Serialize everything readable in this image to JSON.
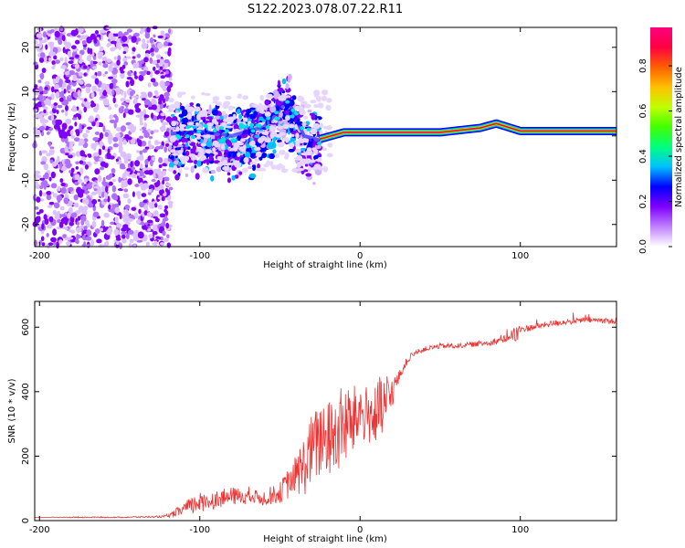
{
  "title": "S122.2023.078.07.22.R11",
  "chart_data": [
    {
      "type": "heatmap",
      "xlabel": "Height of straight line (km)",
      "ylabel": "Frequency (Hz)",
      "xlim": [
        -203,
        160
      ],
      "ylim": [
        -25,
        24.5
      ],
      "xticks": [
        -200,
        -100,
        0,
        100
      ],
      "xtick_labels": [
        "-200",
        "-100",
        "0",
        "100"
      ],
      "yticks": [
        -20,
        -10,
        0,
        10,
        20
      ],
      "ytick_labels": [
        "-20",
        "-10",
        "0",
        "10",
        "20"
      ],
      "colorbar": {
        "label": "Normalized spectral amplitude",
        "range": [
          0,
          0.97
        ],
        "ticks": [
          0.0,
          0.2,
          0.4,
          0.6,
          0.8
        ],
        "tick_labels": [
          "0.0",
          "0.2",
          "0.4",
          "0.6",
          "0.8"
        ],
        "colors": [
          "#ffffff",
          "#c080ff",
          "#8000ff",
          "#0000ff",
          "#00c0ff",
          "#00ff80",
          "#40ff00",
          "#c0ff00",
          "#ffc000",
          "#ff6000",
          "#ff0040",
          "#ff0080"
        ]
      },
      "regions": [
        {
          "x_range": [
            -203,
            -118
          ],
          "y_range": [
            -25,
            24.5
          ],
          "amplitude": 0.15,
          "note_color": "#8000ff"
        },
        {
          "x_range": [
            -118,
            -25
          ],
          "y_range": [
            -15,
            9
          ],
          "amplitude": 0.3
        },
        {
          "x_range": [
            -25,
            160
          ],
          "y_range": [
            -1,
            2
          ],
          "amplitude": 0.9
        }
      ],
      "ridge": [
        [
          -118,
          0.5
        ],
        [
          -100,
          1
        ],
        [
          -80,
          0
        ],
        [
          -60,
          2
        ],
        [
          -45,
          8
        ],
        [
          -35,
          0
        ],
        [
          -25,
          -1
        ],
        [
          -10,
          0.5
        ],
        [
          0,
          0.5
        ],
        [
          50,
          0.5
        ],
        [
          75,
          1.5
        ],
        [
          85,
          2.5
        ],
        [
          100,
          0.8
        ],
        [
          160,
          0.8
        ]
      ]
    },
    {
      "type": "line",
      "xlabel": "Height of straight line (km)",
      "ylabel": "SNR (10 * v/v)",
      "xlim": [
        -203,
        160
      ],
      "ylim": [
        0,
        680
      ],
      "xticks": [
        -200,
        -100,
        0,
        100
      ],
      "xtick_labels": [
        "-200",
        "-100",
        "0",
        "100"
      ],
      "yticks": [
        0,
        200,
        400,
        600
      ],
      "ytick_labels": [
        "0",
        "200",
        "400",
        "600"
      ],
      "line_color": "#ee3333",
      "series": [
        {
          "x": [
            -203,
            -180,
            -150,
            -120,
            -110,
            -100,
            -90,
            -80,
            -70,
            -60,
            -50,
            -40,
            -35,
            -30,
            -25,
            -20,
            -15,
            -10,
            -5,
            0,
            5,
            10,
            15,
            20,
            25,
            30,
            35,
            40,
            50,
            60,
            70,
            80,
            90,
            95,
            97,
            100,
            110,
            120,
            130,
            140,
            150,
            160
          ],
          "y": [
            10,
            10,
            10,
            12,
            30,
            50,
            60,
            70,
            70,
            65,
            80,
            130,
            150,
            200,
            220,
            230,
            240,
            270,
            280,
            320,
            310,
            300,
            320,
            390,
            450,
            500,
            520,
            530,
            540,
            540,
            545,
            550,
            560,
            575,
            560,
            590,
            600,
            610,
            615,
            620,
            620,
            615
          ],
          "noise": [
            0,
            2,
            2,
            4,
            30,
            40,
            35,
            35,
            30,
            30,
            40,
            80,
            120,
            140,
            150,
            150,
            160,
            170,
            140,
            120,
            110,
            130,
            160,
            60,
            20,
            15,
            10,
            10,
            10,
            10,
            10,
            12,
            15,
            20,
            60,
            15,
            12,
            12,
            12,
            12,
            12,
            12
          ]
        }
      ]
    }
  ]
}
